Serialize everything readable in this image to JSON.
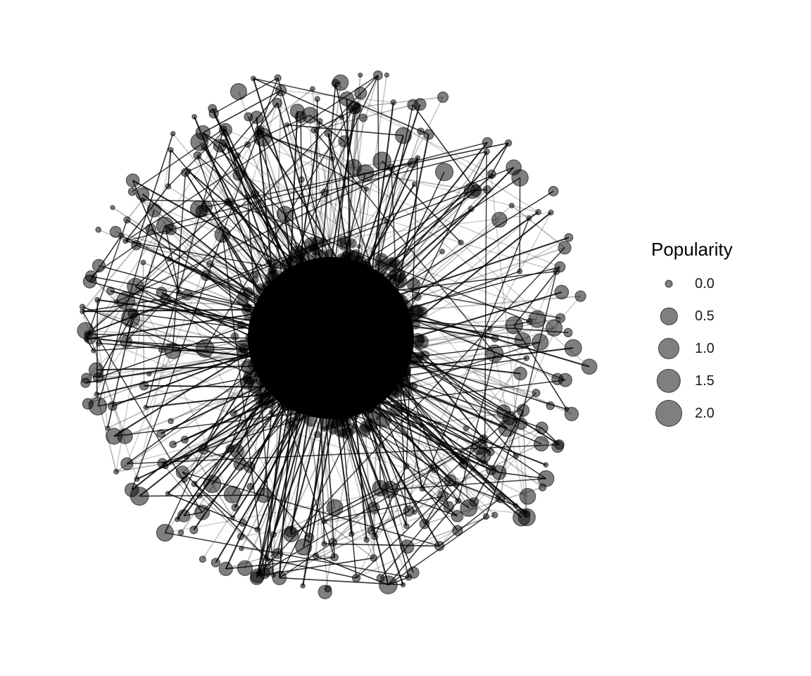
{
  "legend": {
    "title": "Popularity",
    "items": [
      {
        "label": "0.0",
        "value": 0.0
      },
      {
        "label": "0.5",
        "value": 0.5
      },
      {
        "label": "1.0",
        "value": 1.0
      },
      {
        "label": "1.5",
        "value": 1.5
      },
      {
        "label": "2.0",
        "value": 2.0
      }
    ]
  },
  "style": {
    "node_fill": "#000000",
    "node_opacity": 0.5,
    "edge_color": "#000000",
    "background": "#ffffff"
  }
}
